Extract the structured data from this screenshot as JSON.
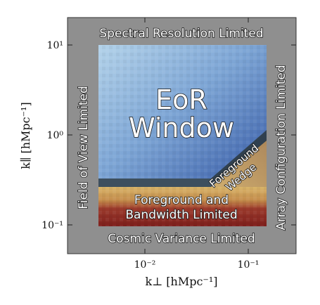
{
  "figure": {
    "regions": {
      "top": "Spectral Resolution Limited",
      "left": "Field of View Limited",
      "right": "Array Configuration Limited",
      "bottom": "Cosmic Variance Limited",
      "eor_line1": "EoR",
      "eor_line2": "Window",
      "wedge_line1": "Foreground",
      "wedge_line2": "Wedge",
      "fg_line1": "Foreground and",
      "fg_line2": "Bandwidth Limited"
    },
    "axes": {
      "xlabel": "k⊥ [hMpc⁻¹]",
      "ylabel": "k∥ [hMpc⁻¹]",
      "x_ticks": [
        "10⁻²",
        "10⁻¹"
      ],
      "y_ticks": [
        "10¹",
        "10⁰",
        "10⁻¹"
      ],
      "x_scale": "log",
      "y_scale": "log"
    },
    "colors": {
      "frame": "#8f8f8f",
      "window_light": "#a8cbe4",
      "window_dark": "#3a5fa8",
      "wedge": "#33424f",
      "foreground_mid": "#c9a86a",
      "foreground_low": "#8b2a22"
    }
  }
}
